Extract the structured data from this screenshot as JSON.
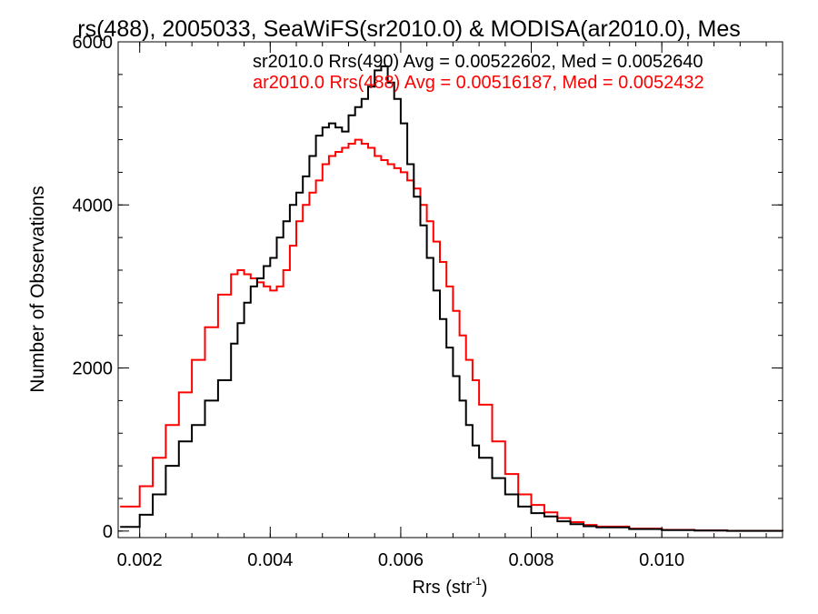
{
  "chart_data": {
    "type": "line",
    "title": "rs(488), 2005033, SeaWiFS(sr2010.0) & MODISA(ar2010.0), Mes",
    "xlabel": "Rrs (str",
    "xlabel_sup": "-1",
    "xlabel_close": ")",
    "ylabel": "Number of Observations",
    "xlim": [
      0.00167,
      0.01185
    ],
    "ylim": [
      -80,
      6000
    ],
    "xticks": [
      {
        "value": 0.002,
        "label": "0.002"
      },
      {
        "value": 0.004,
        "label": "0.004"
      },
      {
        "value": 0.006,
        "label": "0.006"
      },
      {
        "value": 0.008,
        "label": "0.008"
      },
      {
        "value": 0.01,
        "label": "0.010"
      }
    ],
    "yticks": [
      {
        "value": 0,
        "label": "0"
      },
      {
        "value": 2000,
        "label": "2000"
      },
      {
        "value": 4000,
        "label": "4000"
      },
      {
        "value": 6000,
        "label": "6000"
      }
    ],
    "legend_placement": "top-right",
    "series": [
      {
        "name": "sr2010.0 Rrs(490) Avg = 0.00522602, Med = 0.0052640",
        "color": "#000000",
        "x": [
          0.0017,
          0.002,
          0.0022,
          0.0024,
          0.0026,
          0.0028,
          0.003,
          0.0032,
          0.0034,
          0.0035,
          0.0036,
          0.0037,
          0.0038,
          0.0039,
          0.004,
          0.0041,
          0.0042,
          0.0043,
          0.0044,
          0.0045,
          0.0046,
          0.0047,
          0.0048,
          0.0049,
          0.005,
          0.0051,
          0.0052,
          0.0053,
          0.0054,
          0.0055,
          0.0056,
          0.0057,
          0.0058,
          0.0059,
          0.006,
          0.0061,
          0.0062,
          0.0063,
          0.0064,
          0.0065,
          0.0066,
          0.0067,
          0.0068,
          0.0069,
          0.007,
          0.0071,
          0.0072,
          0.0074,
          0.0076,
          0.0078,
          0.008,
          0.0082,
          0.0084,
          0.0086,
          0.0088,
          0.009,
          0.0095,
          0.01,
          0.0105,
          0.011,
          0.01185
        ],
        "values": [
          50,
          200,
          450,
          800,
          1100,
          1300,
          1600,
          1850,
          2300,
          2550,
          2800,
          3000,
          3100,
          3250,
          3350,
          3600,
          3800,
          4000,
          4150,
          4350,
          4600,
          4850,
          4950,
          5000,
          4950,
          4900,
          5100,
          5200,
          5300,
          5450,
          5650,
          5700,
          5500,
          5300,
          5000,
          4500,
          4100,
          3750,
          3350,
          2950,
          2600,
          2250,
          1900,
          1600,
          1300,
          1050,
          900,
          650,
          450,
          300,
          220,
          180,
          120,
          85,
          60,
          45,
          25,
          12,
          6,
          3,
          1
        ]
      },
      {
        "name": "ar2010.0 Rrs(488) Avg = 0.00516187, Med = 0.0052432",
        "color": "#ff0000",
        "x": [
          0.0017,
          0.002,
          0.0022,
          0.0024,
          0.0026,
          0.0028,
          0.003,
          0.0032,
          0.0034,
          0.0035,
          0.0036,
          0.0037,
          0.0038,
          0.0039,
          0.004,
          0.0041,
          0.0042,
          0.0043,
          0.0044,
          0.0045,
          0.0046,
          0.0047,
          0.0048,
          0.0049,
          0.005,
          0.0051,
          0.0052,
          0.0053,
          0.0054,
          0.0055,
          0.0056,
          0.0057,
          0.0058,
          0.0059,
          0.006,
          0.0061,
          0.0062,
          0.0063,
          0.0064,
          0.0065,
          0.0066,
          0.0067,
          0.0068,
          0.0069,
          0.007,
          0.0071,
          0.0072,
          0.0074,
          0.0076,
          0.0078,
          0.008,
          0.0082,
          0.0084,
          0.0086,
          0.0088,
          0.009,
          0.0095,
          0.01,
          0.0105,
          0.011,
          0.01185
        ],
        "values": [
          300,
          550,
          900,
          1300,
          1700,
          2100,
          2500,
          2900,
          3150,
          3200,
          3150,
          3100,
          3050,
          3000,
          2950,
          3000,
          3200,
          3500,
          3800,
          4000,
          4150,
          4300,
          4500,
          4600,
          4650,
          4700,
          4750,
          4800,
          4750,
          4700,
          4600,
          4550,
          4500,
          4450,
          4400,
          4300,
          4200,
          4000,
          3800,
          3550,
          3300,
          3000,
          2700,
          2400,
          2100,
          1850,
          1550,
          1100,
          700,
          450,
          320,
          230,
          160,
          110,
          75,
          55,
          30,
          15,
          8,
          4,
          2
        ]
      }
    ]
  }
}
